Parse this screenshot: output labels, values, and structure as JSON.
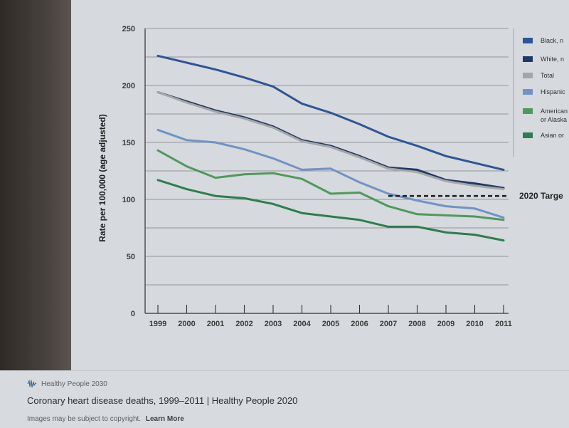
{
  "chart_data": {
    "type": "line",
    "title": "",
    "xlabel": "",
    "ylabel": "Rate per 100,000 (age adjusted)",
    "ylim": [
      0,
      250
    ],
    "yticks": [
      "0",
      "50",
      "100",
      "150",
      "200",
      "250"
    ],
    "x": [
      "1999",
      "2000",
      "2001",
      "2002",
      "2003",
      "2004",
      "2005",
      "2006",
      "2007",
      "2008",
      "2009",
      "2010",
      "2011"
    ],
    "grid": true,
    "legend_position": "right",
    "series": [
      {
        "name": "Black, n",
        "color": "#2f5597",
        "values": [
          226,
          220,
          214,
          207,
          199,
          184,
          176,
          166,
          155,
          147,
          138,
          132,
          126
        ]
      },
      {
        "name": "White, n",
        "color": "#1f3864",
        "values": [
          194,
          186,
          178,
          172,
          164,
          152,
          147,
          138,
          128,
          126,
          117,
          114,
          110
        ]
      },
      {
        "name": "Total",
        "color": "#a6a6a6",
        "values": [
          194,
          185,
          177,
          171,
          163,
          151,
          146,
          137,
          127,
          124,
          116,
          112,
          109
        ]
      },
      {
        "name": "Hispanic",
        "color": "#6f93c7",
        "values": [
          161,
          152,
          150,
          144,
          136,
          126,
          127,
          115,
          105,
          99,
          94,
          92,
          84
        ]
      },
      {
        "name": [
          "American",
          "or Alaska"
        ],
        "color": "#4e9a5a",
        "values": [
          143,
          129,
          119,
          122,
          123,
          118,
          105,
          106,
          94,
          87,
          86,
          85,
          82
        ]
      },
      {
        "name": "Asian or",
        "color": "#2e7d4f",
        "values": [
          117,
          109,
          103,
          101,
          96,
          88,
          85,
          82,
          76,
          76,
          71,
          69,
          64
        ]
      }
    ],
    "annotations": [
      {
        "text": "2020 Targe",
        "value": 103,
        "x_from": "2007",
        "x_to": "2011",
        "style": "dashed"
      }
    ]
  },
  "caption": {
    "source": "Healthy People 2030",
    "title": "Coronary heart disease deaths, 1999–2011 | Healthy People 2020",
    "copyright": "Images may be subject to copyright.",
    "learn_more": "Learn More"
  }
}
